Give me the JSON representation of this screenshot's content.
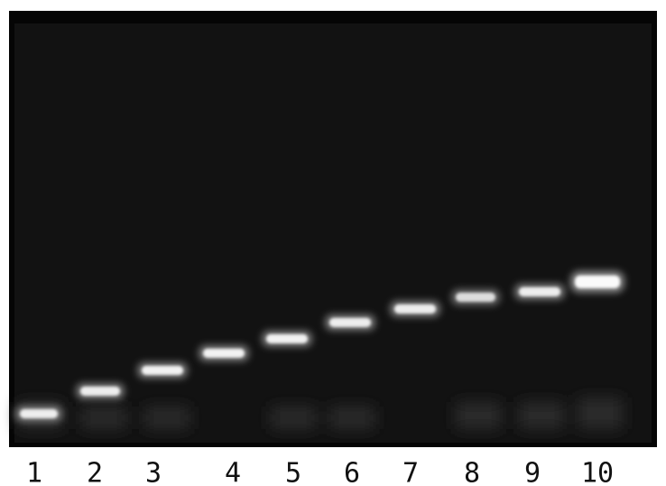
{
  "lanes": {
    "labels": [
      "1",
      "2",
      "3",
      "4",
      "5",
      "6",
      "7",
      "8",
      "9",
      "10"
    ]
  }
}
